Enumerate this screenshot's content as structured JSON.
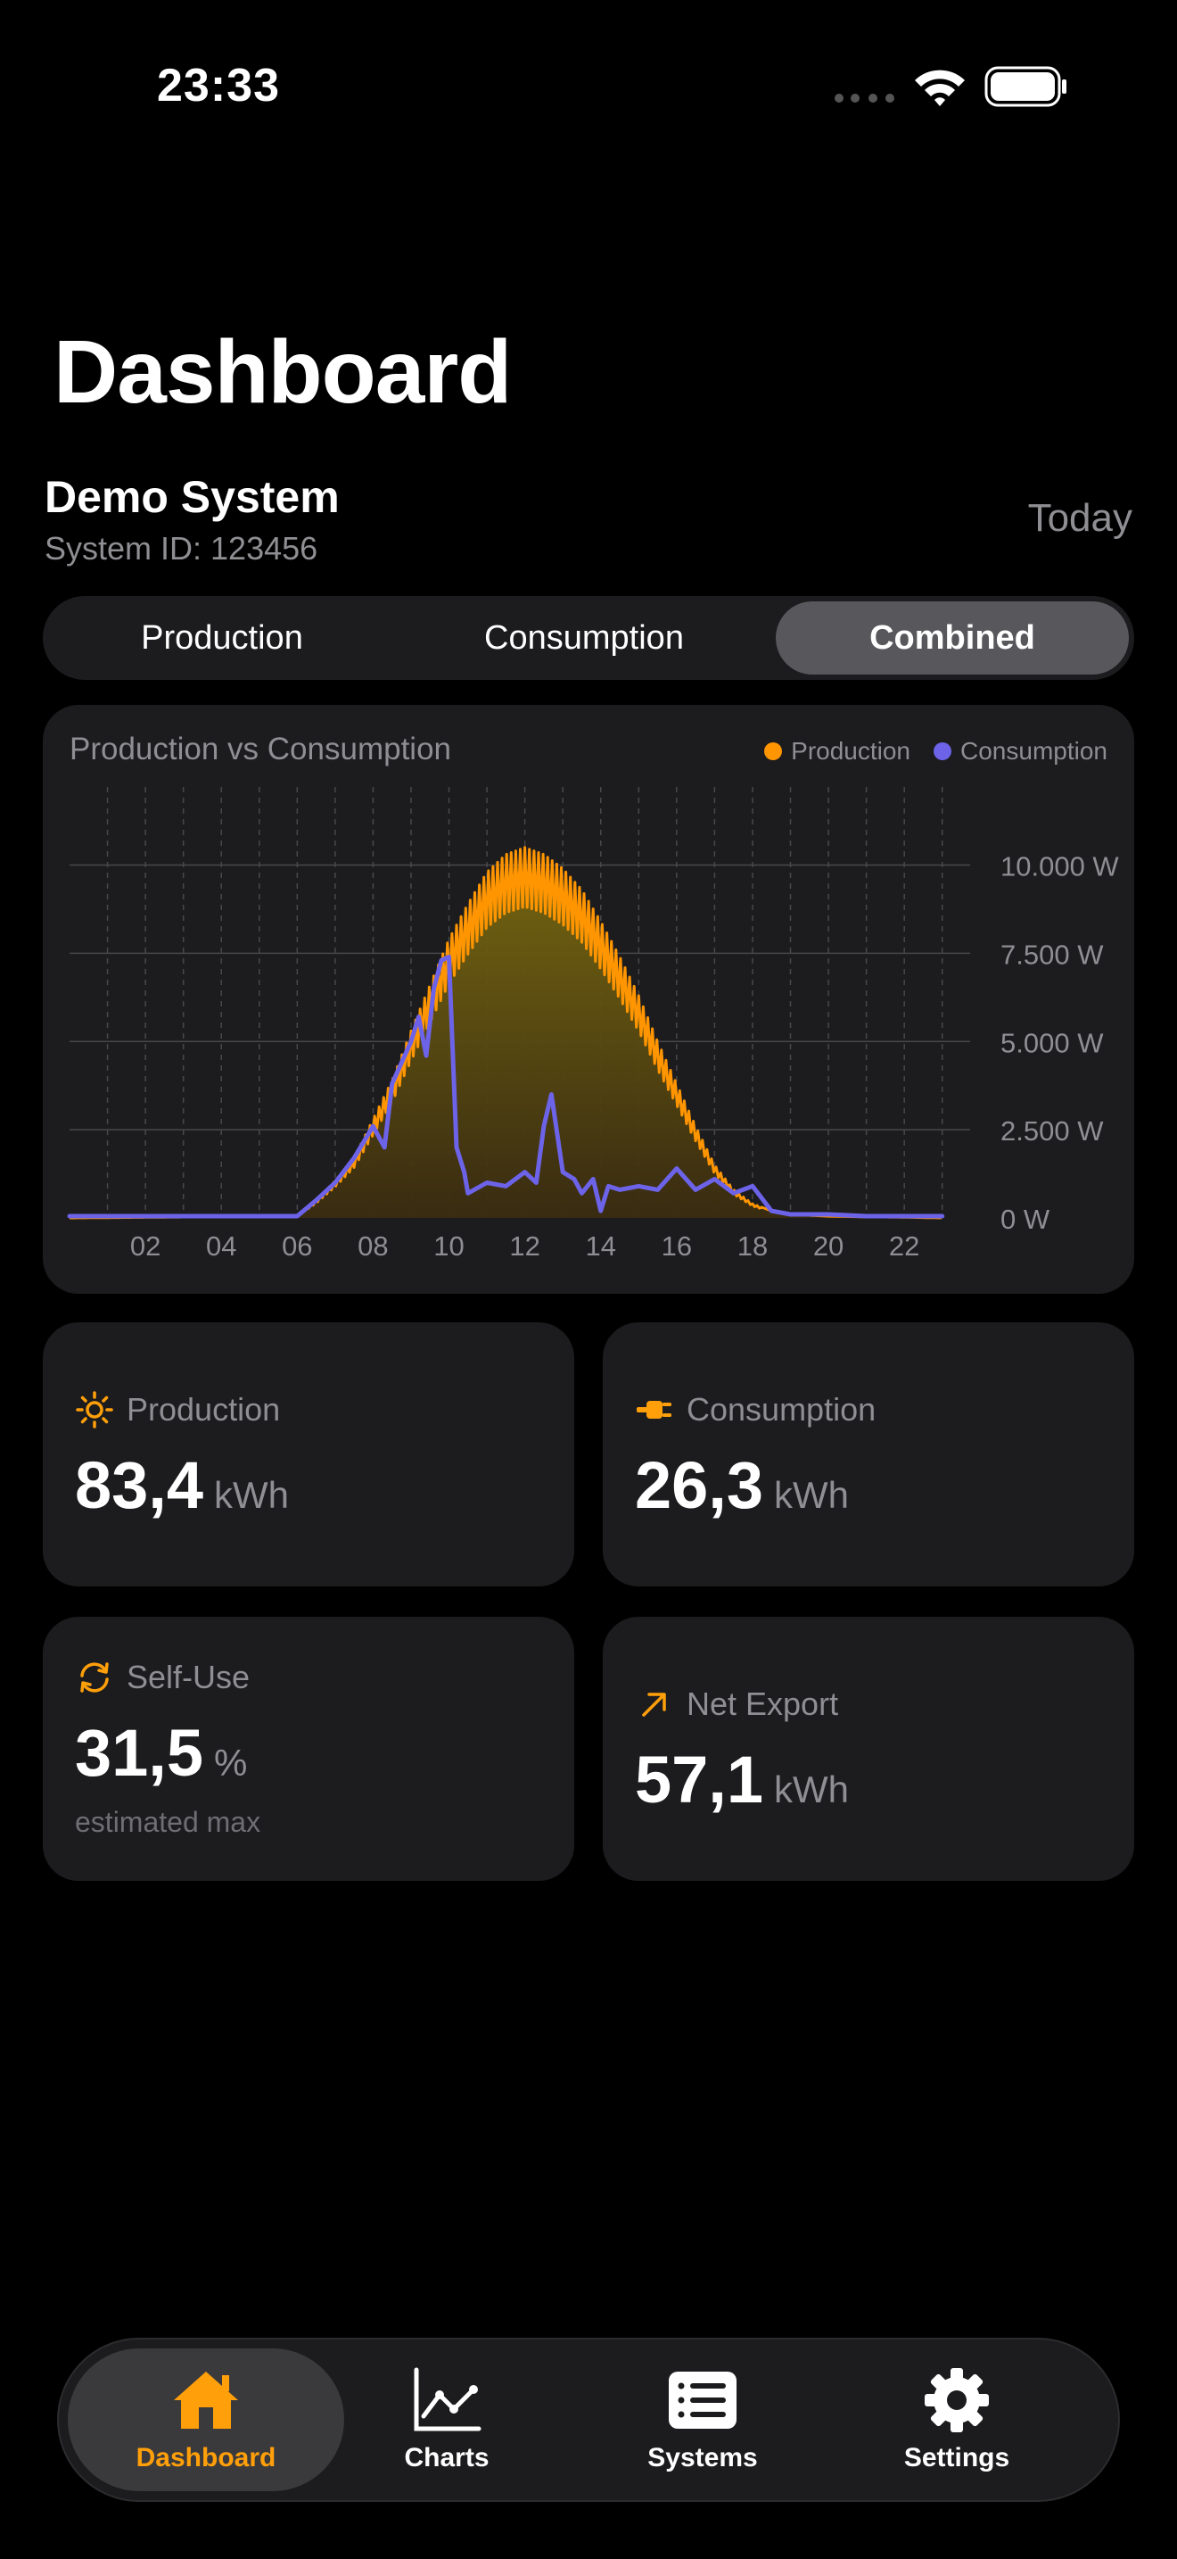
{
  "status_bar": {
    "time": "23:33"
  },
  "page_title": "Dashboard",
  "system": {
    "name": "Demo System",
    "id_label": "System ID: 123456",
    "period": "Today"
  },
  "segments": [
    {
      "label": "Production",
      "selected": false
    },
    {
      "label": "Consumption",
      "selected": false
    },
    {
      "label": "Combined",
      "selected": true
    }
  ],
  "chart": {
    "title": "Production vs Consumption",
    "legend": [
      {
        "name": "Production",
        "color": "#ff9500"
      },
      {
        "name": "Consumption",
        "color": "#6c63e8"
      }
    ]
  },
  "chart_data": {
    "type": "area",
    "title": "Production vs Consumption",
    "x_unit": "hour",
    "y_unit": "W",
    "xlim": [
      0,
      23.5
    ],
    "ylim": [
      0,
      11000
    ],
    "x_ticks": [
      2,
      4,
      6,
      8,
      10,
      12,
      14,
      16,
      18,
      20,
      22
    ],
    "x_tick_labels": [
      "02",
      "04",
      "06",
      "08",
      "10",
      "12",
      "14",
      "16",
      "18",
      "20",
      "22"
    ],
    "y_ticks": [
      0,
      2500,
      5000,
      7500,
      10000
    ],
    "y_tick_labels": [
      "0 W",
      "2.500 W",
      "5.000 W",
      "7.500 W",
      "10.000 W"
    ],
    "grid": true,
    "legend_position": "top-right",
    "series": [
      {
        "name": "Production",
        "color": "#ff9500",
        "x": [
          0,
          6.0,
          6.5,
          7.0,
          7.5,
          8.0,
          8.5,
          9.0,
          9.5,
          10.0,
          10.5,
          11.0,
          11.5,
          12.0,
          12.5,
          13.0,
          13.5,
          14.0,
          14.5,
          15.0,
          15.5,
          16.0,
          16.5,
          17.0,
          17.5,
          18.0,
          18.5,
          19.0,
          20.0,
          21.0,
          22.0,
          23.0
        ],
        "y": [
          0,
          50,
          500,
          1050,
          1700,
          2800,
          3900,
          5300,
          6600,
          7900,
          8900,
          9800,
          10300,
          10500,
          10300,
          9900,
          9300,
          8400,
          7400,
          6300,
          5000,
          3800,
          2600,
          1500,
          800,
          400,
          200,
          100,
          50,
          30,
          20,
          0
        ]
      },
      {
        "name": "Consumption",
        "color": "#6c63e8",
        "x": [
          0,
          6.0,
          6.5,
          7.0,
          7.5,
          8.0,
          8.3,
          8.5,
          9.0,
          9.2,
          9.4,
          9.6,
          9.8,
          10.0,
          10.2,
          10.4,
          10.5,
          11.0,
          11.5,
          12.0,
          12.3,
          12.5,
          12.7,
          13.0,
          13.3,
          13.5,
          13.8,
          14.0,
          14.2,
          14.5,
          15.0,
          15.5,
          16.0,
          16.5,
          17.0,
          17.5,
          18.0,
          18.5,
          19.0,
          20.0,
          21.0,
          22.0,
          23.0
        ],
        "y": [
          50,
          50,
          500,
          1000,
          1700,
          2600,
          2000,
          3800,
          5000,
          5700,
          4600,
          6500,
          7300,
          7400,
          2000,
          1300,
          700,
          1000,
          900,
          1300,
          1000,
          2600,
          3500,
          1300,
          1100,
          700,
          1100,
          200,
          900,
          800,
          900,
          800,
          1400,
          800,
          1100,
          700,
          900,
          200,
          100,
          100,
          50,
          50,
          50
        ]
      }
    ]
  },
  "stats": {
    "production": {
      "label": "Production",
      "value": "83,4",
      "unit": "kWh",
      "icon": "sun-icon"
    },
    "consumption": {
      "label": "Consumption",
      "value": "26,3",
      "unit": "kWh",
      "icon": "plug-icon"
    },
    "self_use": {
      "label": "Self-Use",
      "value": "31,5",
      "unit": "%",
      "sub": "estimated max",
      "icon": "refresh-icon"
    },
    "net_export": {
      "label": "Net Export",
      "value": "57,1",
      "unit": "kWh",
      "icon": "arrow-up-right-icon"
    }
  },
  "colors": {
    "accent": "#ff9f0a",
    "production": "#ff9500",
    "consumption": "#6c63e8",
    "card": "#1c1c1e"
  },
  "tabs": [
    {
      "label": "Dashboard",
      "icon": "house-icon",
      "active": true
    },
    {
      "label": "Charts",
      "icon": "line-chart-icon",
      "active": false
    },
    {
      "label": "Systems",
      "icon": "list-icon",
      "active": false
    },
    {
      "label": "Settings",
      "icon": "gear-icon",
      "active": false
    }
  ]
}
